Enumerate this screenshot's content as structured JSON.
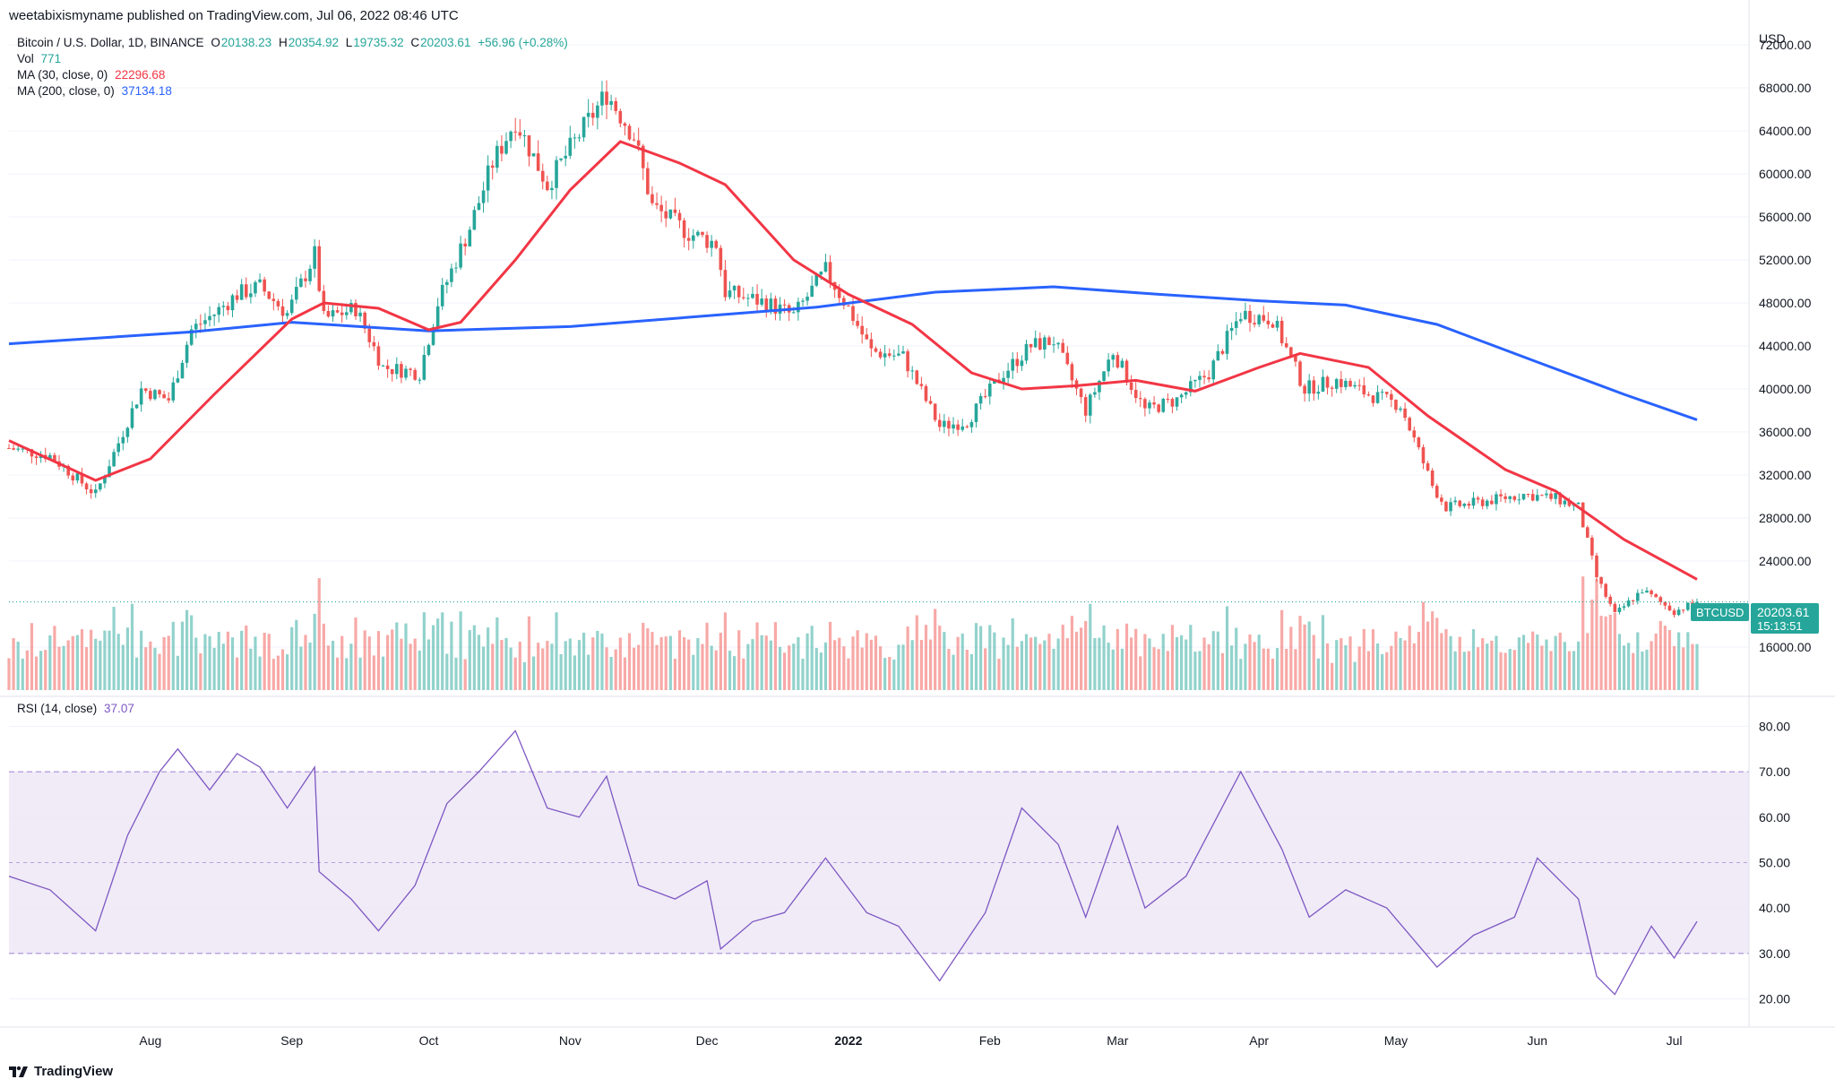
{
  "header": {
    "published_by": "weetabixismyname published on TradingView.com, Jul 06, 2022 08:46 UTC"
  },
  "legend": {
    "symbol": "Bitcoin / U.S. Dollar, 1D, BINANCE",
    "o_label": "O",
    "o_value": "20138.23",
    "h_label": "H",
    "h_value": "20354.92",
    "l_label": "L",
    "l_value": "19735.32",
    "c_label": "C",
    "c_value": "20203.61",
    "change": "+56.96 (+0.28%)",
    "vol_label": "Vol",
    "vol_value": "771",
    "ma30_label": "MA (30, close, 0)",
    "ma30_value": "22296.68",
    "ma200_label": "MA (200, close, 0)",
    "ma200_value": "37134.18",
    "rsi_label": "RSI (14, close)",
    "rsi_value": "37.07"
  },
  "price_axis": {
    "currency": "USD",
    "ticks": [
      "72000.00",
      "68000.00",
      "64000.00",
      "60000.00",
      "56000.00",
      "52000.00",
      "48000.00",
      "44000.00",
      "40000.00",
      "36000.00",
      "32000.00",
      "28000.00",
      "24000.00",
      "16000.00"
    ]
  },
  "price_tag": {
    "symbol": "BTCUSD",
    "price": "20203.61",
    "countdown": "15:13:51"
  },
  "rsi_axis": {
    "ticks": [
      "80.00",
      "70.00",
      "60.00",
      "50.00",
      "40.00",
      "30.00",
      "20.00"
    ]
  },
  "time_axis": {
    "labels": [
      "Aug",
      "Sep",
      "Oct",
      "Nov",
      "Dec",
      "2022",
      "Feb",
      "Mar",
      "Apr",
      "May",
      "Jun",
      "Jul"
    ]
  },
  "footer": {
    "brand": "TradingView"
  },
  "colors": {
    "up": "#26a69a",
    "down": "#ef5350",
    "ma30": "#f23645",
    "ma200": "#2962ff",
    "rsi": "#7e57c2",
    "rsi_band": "#ede7f6"
  },
  "chart_data": [
    {
      "type": "candlestick",
      "x_range": [
        "2021-07-01",
        "2022-07-06"
      ],
      "ylim": [
        12000,
        74000
      ],
      "price_line": 20203.61,
      "price_points": [
        [
          "2021-07-01",
          34500
        ],
        [
          "2021-07-10",
          33800
        ],
        [
          "2021-07-20",
          30200
        ],
        [
          "2021-07-25",
          35000
        ],
        [
          "2021-07-30",
          40000
        ],
        [
          "2021-08-05",
          39000
        ],
        [
          "2021-08-10",
          45500
        ],
        [
          "2021-08-15",
          47000
        ],
        [
          "2021-08-20",
          48800
        ],
        [
          "2021-08-25",
          49500
        ],
        [
          "2021-08-31",
          47000
        ],
        [
          "2021-09-06",
          52500
        ],
        [
          "2021-09-08",
          46500
        ],
        [
          "2021-09-15",
          47500
        ],
        [
          "2021-09-21",
          42000
        ],
        [
          "2021-09-29",
          41500
        ],
        [
          "2021-10-03",
          48000
        ],
        [
          "2021-10-10",
          55000
        ],
        [
          "2021-10-15",
          61000
        ],
        [
          "2021-10-20",
          65000
        ],
        [
          "2021-10-27",
          59000
        ],
        [
          "2021-11-02",
          63000
        ],
        [
          "2021-11-09",
          67500
        ],
        [
          "2021-11-15",
          63500
        ],
        [
          "2021-11-19",
          57000
        ],
        [
          "2021-11-27",
          54500
        ],
        [
          "2021-12-03",
          53500
        ],
        [
          "2021-12-05",
          49000
        ],
        [
          "2021-12-14",
          48000
        ],
        [
          "2021-12-20",
          46800
        ],
        [
          "2021-12-27",
          51000
        ],
        [
          "2022-01-01",
          47500
        ],
        [
          "2022-01-06",
          43500
        ],
        [
          "2022-01-13",
          43000
        ],
        [
          "2022-01-21",
          36500
        ],
        [
          "2022-01-27",
          37000
        ],
        [
          "2022-02-04",
          41500
        ],
        [
          "2022-02-10",
          44000
        ],
        [
          "2022-02-15",
          44500
        ],
        [
          "2022-02-22",
          38000
        ],
        [
          "2022-02-28",
          43500
        ],
        [
          "2022-03-07",
          38000
        ],
        [
          "2022-03-14",
          39000
        ],
        [
          "2022-03-21",
          41500
        ],
        [
          "2022-03-28",
          47000
        ],
        [
          "2022-04-04",
          46500
        ],
        [
          "2022-04-11",
          40000
        ],
        [
          "2022-04-18",
          40800
        ],
        [
          "2022-04-25",
          39500
        ],
        [
          "2022-05-02",
          38500
        ],
        [
          "2022-05-09",
          31000
        ],
        [
          "2022-05-12",
          29000
        ],
        [
          "2022-05-20",
          29500
        ],
        [
          "2022-05-29",
          30200
        ],
        [
          "2022-06-05",
          29800
        ],
        [
          "2022-06-10",
          29000
        ],
        [
          "2022-06-14",
          22500
        ],
        [
          "2022-06-18",
          19000
        ],
        [
          "2022-06-24",
          21300
        ],
        [
          "2022-07-01",
          19300
        ],
        [
          "2022-07-06",
          20203.61
        ]
      ],
      "ma30_points": [
        [
          "2021-07-01",
          35200
        ],
        [
          "2021-07-20",
          31500
        ],
        [
          "2021-08-01",
          33500
        ],
        [
          "2021-08-15",
          39500
        ],
        [
          "2021-09-01",
          46500
        ],
        [
          "2021-09-08",
          48000
        ],
        [
          "2021-09-20",
          47500
        ],
        [
          "2021-10-01",
          45500
        ],
        [
          "2021-10-08",
          46200
        ],
        [
          "2021-10-20",
          52000
        ],
        [
          "2021-11-01",
          58500
        ],
        [
          "2021-11-12",
          63000
        ],
        [
          "2021-11-25",
          61000
        ],
        [
          "2021-12-05",
          59000
        ],
        [
          "2021-12-20",
          52000
        ],
        [
          "2022-01-01",
          48800
        ],
        [
          "2022-01-15",
          46000
        ],
        [
          "2022-01-28",
          41500
        ],
        [
          "2022-02-08",
          40000
        ],
        [
          "2022-02-20",
          40300
        ],
        [
          "2022-03-05",
          40800
        ],
        [
          "2022-03-18",
          39800
        ],
        [
          "2022-04-01",
          42000
        ],
        [
          "2022-04-10",
          43300
        ],
        [
          "2022-04-25",
          42000
        ],
        [
          "2022-05-08",
          37500
        ],
        [
          "2022-05-25",
          32500
        ],
        [
          "2022-06-05",
          30500
        ],
        [
          "2022-06-20",
          26000
        ],
        [
          "2022-07-06",
          22296.68
        ]
      ],
      "ma200_points": [
        [
          "2021-07-01",
          44200
        ],
        [
          "2021-08-10",
          45300
        ],
        [
          "2021-09-01",
          46200
        ],
        [
          "2021-10-01",
          45400
        ],
        [
          "2021-11-01",
          45800
        ],
        [
          "2021-12-01",
          46800
        ],
        [
          "2021-12-25",
          47600
        ],
        [
          "2022-01-20",
          49000
        ],
        [
          "2022-02-15",
          49500
        ],
        [
          "2022-03-10",
          48800
        ],
        [
          "2022-04-01",
          48200
        ],
        [
          "2022-04-20",
          47800
        ],
        [
          "2022-05-10",
          46000
        ],
        [
          "2022-06-01",
          42500
        ],
        [
          "2022-06-20",
          39500
        ],
        [
          "2022-07-06",
          37134.18
        ]
      ]
    },
    {
      "type": "line",
      "title": "RSI (14, close)",
      "ylim": [
        15,
        85
      ],
      "band": [
        30,
        70
      ],
      "midline": 50,
      "points": [
        [
          "2021-07-01",
          47
        ],
        [
          "2021-07-10",
          44
        ],
        [
          "2021-07-20",
          35
        ],
        [
          "2021-07-27",
          56
        ],
        [
          "2021-08-03",
          70
        ],
        [
          "2021-08-07",
          75
        ],
        [
          "2021-08-14",
          66
        ],
        [
          "2021-08-20",
          74
        ],
        [
          "2021-08-25",
          71
        ],
        [
          "2021-08-31",
          62
        ],
        [
          "2021-09-06",
          71
        ],
        [
          "2021-09-07",
          48
        ],
        [
          "2021-09-14",
          42
        ],
        [
          "2021-09-20",
          35
        ],
        [
          "2021-09-28",
          45
        ],
        [
          "2021-10-05",
          63
        ],
        [
          "2021-10-12",
          70
        ],
        [
          "2021-10-20",
          79
        ],
        [
          "2021-10-27",
          62
        ],
        [
          "2021-11-03",
          60
        ],
        [
          "2021-11-09",
          69
        ],
        [
          "2021-11-16",
          45
        ],
        [
          "2021-11-24",
          42
        ],
        [
          "2021-12-01",
          46
        ],
        [
          "2021-12-04",
          31
        ],
        [
          "2021-12-11",
          37
        ],
        [
          "2021-12-18",
          39
        ],
        [
          "2021-12-27",
          51
        ],
        [
          "2022-01-05",
          39
        ],
        [
          "2022-01-12",
          36
        ],
        [
          "2022-01-21",
          24
        ],
        [
          "2022-01-31",
          39
        ],
        [
          "2022-02-08",
          62
        ],
        [
          "2022-02-16",
          54
        ],
        [
          "2022-02-22",
          38
        ],
        [
          "2022-03-01",
          58
        ],
        [
          "2022-03-07",
          40
        ],
        [
          "2022-03-16",
          47
        ],
        [
          "2022-03-28",
          70
        ],
        [
          "2022-04-06",
          53
        ],
        [
          "2022-04-12",
          38
        ],
        [
          "2022-04-20",
          44
        ],
        [
          "2022-04-29",
          40
        ],
        [
          "2022-05-10",
          27
        ],
        [
          "2022-05-18",
          34
        ],
        [
          "2022-05-27",
          38
        ],
        [
          "2022-06-01",
          51
        ],
        [
          "2022-06-06",
          46
        ],
        [
          "2022-06-10",
          42
        ],
        [
          "2022-06-14",
          25
        ],
        [
          "2022-06-18",
          21
        ],
        [
          "2022-06-26",
          36
        ],
        [
          "2022-07-01",
          29
        ],
        [
          "2022-07-06",
          37.07
        ]
      ]
    }
  ]
}
